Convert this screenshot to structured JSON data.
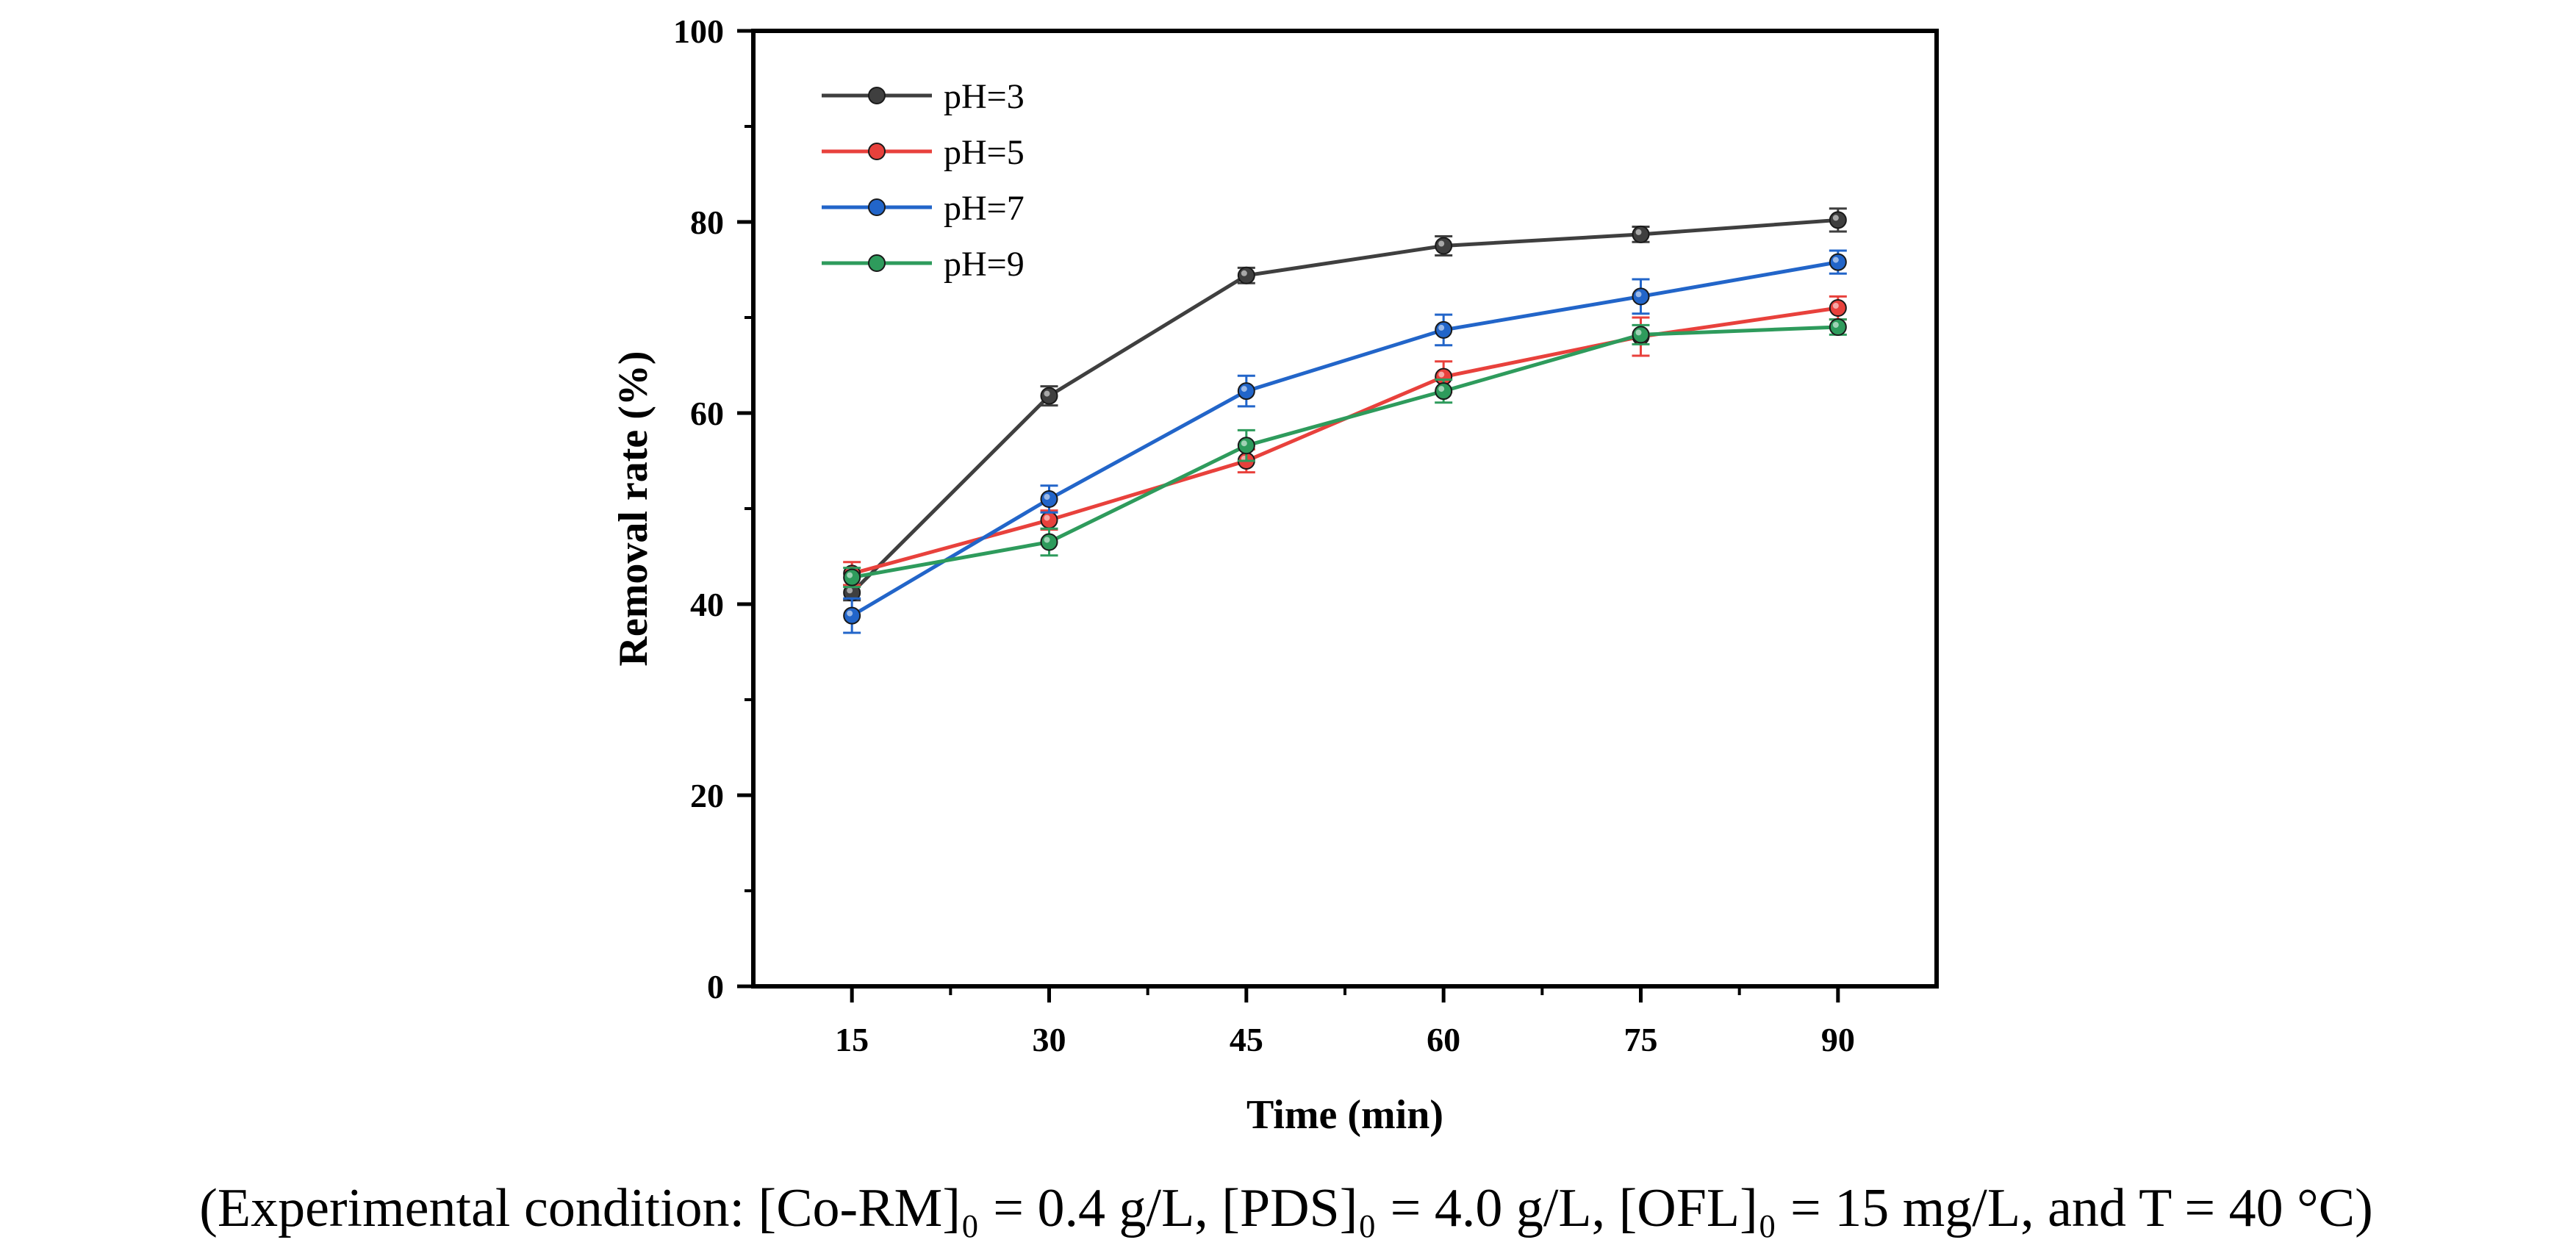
{
  "chart_data": {
    "type": "line",
    "title": "",
    "xlabel": "Time (min)",
    "ylabel": "Removal rate (%)",
    "x": [
      15,
      30,
      45,
      60,
      75,
      90
    ],
    "xticks": [
      "15",
      "30",
      "45",
      "60",
      "75",
      "90"
    ],
    "yticks": [
      "0",
      "20",
      "40",
      "60",
      "80",
      "100"
    ],
    "xlim": [
      7.5,
      97.5
    ],
    "ylim": [
      0,
      100
    ],
    "legend_position": "top-left",
    "series": [
      {
        "name": "pH=3",
        "color": "#3f3f3f",
        "values": [
          41.2,
          61.8,
          74.4,
          77.5,
          78.7,
          80.2
        ],
        "errors": [
          0.8,
          1.0,
          0.8,
          1.0,
          0.8,
          1.2
        ]
      },
      {
        "name": "pH=5",
        "color": "#e8413c",
        "values": [
          43.2,
          48.8,
          55.0,
          63.8,
          68.0,
          71.0
        ],
        "errors": [
          1.2,
          1.0,
          1.2,
          1.6,
          2.0,
          1.2
        ]
      },
      {
        "name": "pH=7",
        "color": "#2265c9",
        "values": [
          38.8,
          51.0,
          62.3,
          68.7,
          72.2,
          75.8
        ],
        "errors": [
          1.8,
          1.4,
          1.6,
          1.6,
          1.8,
          1.2
        ]
      },
      {
        "name": "pH=9",
        "color": "#2e9b5c",
        "values": [
          42.8,
          46.5,
          56.6,
          62.3,
          68.2,
          69.0
        ],
        "errors": [
          1.0,
          1.4,
          1.6,
          1.2,
          1.0,
          0.8
        ]
      }
    ]
  },
  "caption": "(Experimental condition: [Co-RM]₀ = 0.4 g/L, [PDS]₀ = 4.0 g/L, [OFL]₀ = 15 mg/L, and T = 40 °C)"
}
